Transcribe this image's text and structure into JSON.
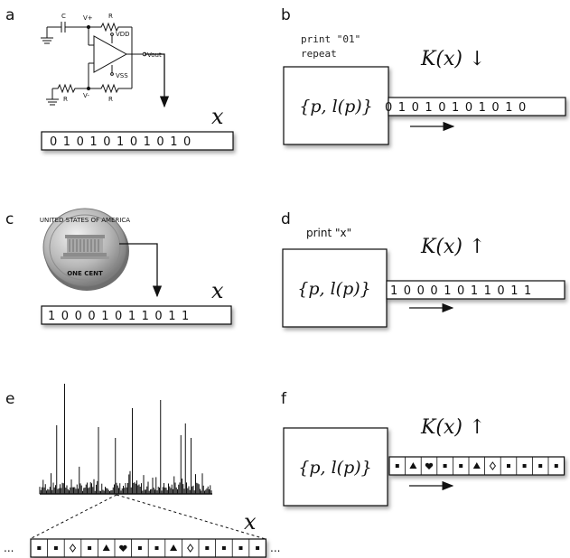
{
  "panels": {
    "a": {
      "label": "a",
      "tape": "0 1 0 1 0 1 0 1 0 1 0",
      "var_label": "x",
      "circuit_labels": {
        "cap": "C",
        "r_top": "R",
        "r_bottom_left": "R",
        "r_bottom_right": "R",
        "v_plus": "V+",
        "v_minus": "V-",
        "vdd": "VDD",
        "vss": "VSS",
        "vout": "Vout"
      }
    },
    "b": {
      "label": "b",
      "code_line1": "print \"01\"",
      "code_line2": "repeat",
      "box_text": "{p, l(p)}",
      "complexity": "K(x) ↓",
      "tape": "0 1 0 1 0 1 0 1 0 1 0"
    },
    "c": {
      "label": "c",
      "tape": "1 0 0 0 1 0 1 1 0 1 1",
      "var_label": "x",
      "coin_text_top": "UNITED STATES OF AMERICA",
      "coin_text_bottom": "ONE CENT"
    },
    "d": {
      "label": "d",
      "code_line1": "print \"x\"",
      "box_text": "{p, l(p)}",
      "complexity": "K(x) ↑",
      "tape": "1 0 0 0 1 0 1 1 0 1 1"
    },
    "e": {
      "label": "e",
      "var_label": "x",
      "ellipsis_left": "...",
      "ellipsis_right": "...",
      "symbols": [
        "square",
        "square",
        "diamond",
        "square",
        "triangle",
        "heart",
        "square",
        "square",
        "triangle",
        "diamond",
        "square",
        "square",
        "square",
        "square"
      ]
    },
    "f": {
      "label": "f",
      "box_text": "{p, l(p)}",
      "complexity": "K(x) ↑",
      "symbols": [
        "square",
        "triangle",
        "heart",
        "square",
        "square",
        "triangle",
        "diamond",
        "square",
        "square",
        "square",
        "square"
      ]
    }
  }
}
